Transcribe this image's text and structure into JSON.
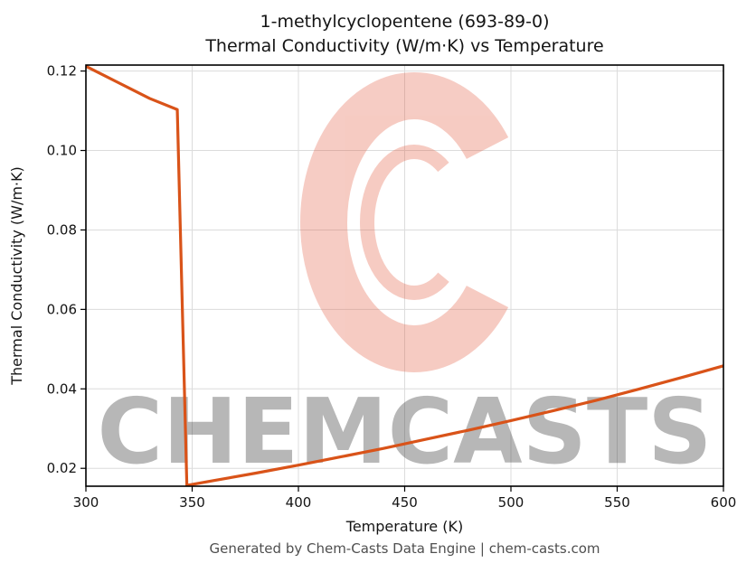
{
  "page": {
    "background": "#ffffff"
  },
  "footer": {
    "text": "Generated by Chem-Casts Data Engine | chem-casts.com"
  },
  "watermark": {
    "text": "CHEMCASTS",
    "color": "#e2563a",
    "opacity": 0.3
  },
  "chart_data": {
    "type": "line",
    "title": "1-methylcyclopentene (693-89-0)",
    "subtitle": "Thermal Conductivity (W/m·K) vs Temperature",
    "xlabel": "Temperature (K)",
    "ylabel": "Thermal Conductivity (W/m·K)",
    "xlim": [
      300,
      600
    ],
    "ylim": [
      0.0155,
      0.1215
    ],
    "xticks": [
      300,
      350,
      400,
      450,
      500,
      550,
      600
    ],
    "xtick_labels": [
      "300",
      "350",
      "400",
      "450",
      "500",
      "550",
      "600"
    ],
    "yticks": [
      0.02,
      0.04,
      0.06,
      0.08,
      0.1,
      0.12
    ],
    "ytick_labels": [
      "0.02",
      "0.04",
      "0.06",
      "0.08",
      "0.10",
      "0.12"
    ],
    "grid": true,
    "legend": "none",
    "line_color": "#d95319",
    "series": [
      {
        "name": "thermal-conductivity",
        "x": [
          300,
          310,
          320,
          330,
          343,
          347.5,
          360,
          380,
          400,
          420,
          440,
          460,
          480,
          500,
          520,
          540,
          560,
          580,
          600
        ],
        "y": [
          0.1212,
          0.1185,
          0.1158,
          0.1131,
          0.1103,
          0.0157,
          0.0169,
          0.0188,
          0.0208,
          0.0229,
          0.025,
          0.0273,
          0.0296,
          0.032,
          0.0345,
          0.0371,
          0.0399,
          0.0428,
          0.0458
        ]
      }
    ]
  }
}
